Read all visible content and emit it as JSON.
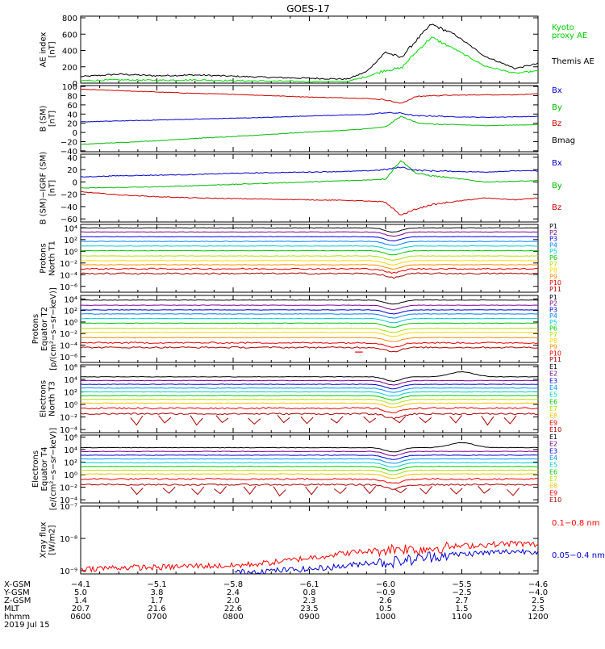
{
  "title": "GOES-17",
  "panels": [
    {
      "id": "ae",
      "ylabel": [
        "AE index",
        "[nT]"
      ],
      "ticks": [
        {
          "v": 800,
          "t": "800"
        },
        {
          "v": 600,
          "t": "600"
        },
        {
          "v": 400,
          "t": "400"
        },
        {
          "v": 200,
          "t": "200"
        },
        {
          "v": 0,
          "t": "0"
        }
      ],
      "ylim": [
        0,
        820
      ],
      "log": false,
      "legend": [
        {
          "text": "Kyoto",
          "color": "#00cc00"
        },
        {
          "text": "proxy AE",
          "color": "#00cc00"
        },
        {
          "text": "Themis AE",
          "color": "#000000"
        }
      ]
    },
    {
      "id": "bsm",
      "ylabel": [
        "B (SM)",
        "[nT]"
      ],
      "ticks": [
        {
          "v": 100,
          "t": "100"
        },
        {
          "v": 80,
          "t": "80"
        },
        {
          "v": 60,
          "t": "60"
        },
        {
          "v": 40,
          "t": "40"
        },
        {
          "v": 20,
          "t": "20"
        },
        {
          "v": 0,
          "t": "0"
        },
        {
          "v": -20,
          "t": "−20"
        },
        {
          "v": -40,
          "t": "−40"
        }
      ],
      "ylim": [
        -42,
        102
      ],
      "log": false,
      "legend": [
        {
          "text": "Bx",
          "color": "#0000cc"
        },
        {
          "text": "By",
          "color": "#00bb00"
        },
        {
          "text": "Bz",
          "color": "#cc0000"
        },
        {
          "text": "Bmag",
          "color": "#000000"
        }
      ]
    },
    {
      "id": "bigrf",
      "ylabel": [
        "B (SM)−IGRF (SM)",
        "[nT]"
      ],
      "ticks": [
        {
          "v": 40,
          "t": "40"
        },
        {
          "v": 20,
          "t": "20"
        },
        {
          "v": 0,
          "t": "0"
        },
        {
          "v": -20,
          "t": "−20"
        },
        {
          "v": -40,
          "t": "−40"
        },
        {
          "v": -60,
          "t": "−60"
        }
      ],
      "ylim": [
        -65,
        45
      ],
      "log": false,
      "legend": [
        {
          "text": "Bx",
          "color": "#0000cc"
        },
        {
          "text": "By",
          "color": "#00bb00"
        },
        {
          "text": "Bz",
          "color": "#cc0000"
        }
      ]
    },
    {
      "id": "pt1",
      "ylabel": [
        "Protons",
        "North T1"
      ],
      "ticks": [
        {
          "v": 4,
          "t": "10⁴"
        },
        {
          "v": 2,
          "t": "10²"
        },
        {
          "v": 0,
          "t": "10⁰"
        },
        {
          "v": -2,
          "t": "10⁻²"
        },
        {
          "v": -4,
          "t": "10⁻⁴"
        },
        {
          "v": -6,
          "t": "10⁻⁶"
        }
      ],
      "ylim": [
        -7,
        4.6
      ],
      "log": true,
      "legend": [
        {
          "text": "P1",
          "color": "#000000"
        },
        {
          "text": "P2",
          "color": "#7a0091"
        },
        {
          "text": "P3",
          "color": "#0000dd"
        },
        {
          "text": "P4",
          "color": "#0080ff"
        },
        {
          "text": "P5",
          "color": "#00cccc"
        },
        {
          "text": "P6",
          "color": "#00c800"
        },
        {
          "text": "P7",
          "color": "#b0e000"
        },
        {
          "text": "P8",
          "color": "#ffd700"
        },
        {
          "text": "P9",
          "color": "#ff8c00"
        },
        {
          "text": "P10",
          "color": "#ee0000"
        },
        {
          "text": "P11",
          "color": "#aa0000"
        }
      ]
    },
    {
      "id": "pt2",
      "ylabel": [
        "Protons",
        "Equator T2",
        "[p/(cm²−s−sr−keV)]"
      ],
      "ticks": [
        {
          "v": 4,
          "t": "10⁴"
        },
        {
          "v": 2,
          "t": "10²"
        },
        {
          "v": 0,
          "t": "10⁰"
        },
        {
          "v": -2,
          "t": "10⁻²"
        },
        {
          "v": -4,
          "t": "10⁻⁴"
        },
        {
          "v": -6,
          "t": "10⁻⁶"
        }
      ],
      "ylim": [
        -7,
        4.6
      ],
      "log": true,
      "legend": [
        {
          "text": "P1",
          "color": "#000000"
        },
        {
          "text": "P2",
          "color": "#7a0091"
        },
        {
          "text": "P3",
          "color": "#0000dd"
        },
        {
          "text": "P4",
          "color": "#0080ff"
        },
        {
          "text": "P5",
          "color": "#00cccc"
        },
        {
          "text": "P6",
          "color": "#00c800"
        },
        {
          "text": "P7",
          "color": "#b0e000"
        },
        {
          "text": "P8",
          "color": "#ffd700"
        },
        {
          "text": "P9",
          "color": "#ff8c00"
        },
        {
          "text": "P10",
          "color": "#ee0000"
        },
        {
          "text": "P11",
          "color": "#aa0000"
        }
      ]
    },
    {
      "id": "et3",
      "ylabel": [
        "Electrons",
        "North T3"
      ],
      "ticks": [
        {
          "v": 6,
          "t": "10⁶"
        },
        {
          "v": 4,
          "t": "10⁴"
        },
        {
          "v": 2,
          "t": "10²"
        },
        {
          "v": 0,
          "t": "10⁰"
        },
        {
          "v": -2,
          "t": "10⁻²"
        },
        {
          "v": -4,
          "t": "10⁻⁴"
        }
      ],
      "ylim": [
        -4.5,
        6.3
      ],
      "log": true,
      "legend": [
        {
          "text": "E1",
          "color": "#000000"
        },
        {
          "text": "E2",
          "color": "#7a0091"
        },
        {
          "text": "E3",
          "color": "#0000dd"
        },
        {
          "text": "E4",
          "color": "#0090ff"
        },
        {
          "text": "E5",
          "color": "#00cccc"
        },
        {
          "text": "E6",
          "color": "#00c800"
        },
        {
          "text": "E7",
          "color": "#b0e000"
        },
        {
          "text": "E8",
          "color": "#ffc000"
        },
        {
          "text": "E9",
          "color": "#ee0000"
        },
        {
          "text": "E10",
          "color": "#aa0000"
        }
      ]
    },
    {
      "id": "et4",
      "ylabel": [
        "Electrons",
        "Equator T4",
        "[e/(cm²−s−sr−keV)]"
      ],
      "ticks": [
        {
          "v": 6,
          "t": "10⁶"
        },
        {
          "v": 4,
          "t": "10⁴"
        },
        {
          "v": 2,
          "t": "10²"
        },
        {
          "v": 0,
          "t": "10⁰"
        },
        {
          "v": -2,
          "t": "10⁻²"
        },
        {
          "v": -4,
          "t": "10⁻⁴"
        }
      ],
      "ylim": [
        -4.5,
        6.3
      ],
      "log": true,
      "legend": [
        {
          "text": "E1",
          "color": "#000000"
        },
        {
          "text": "E2",
          "color": "#7a0091"
        },
        {
          "text": "E3",
          "color": "#0000dd"
        },
        {
          "text": "E4",
          "color": "#0090ff"
        },
        {
          "text": "E5",
          "color": "#00cccc"
        },
        {
          "text": "E6",
          "color": "#00c800"
        },
        {
          "text": "E7",
          "color": "#b0e000"
        },
        {
          "text": "E8",
          "color": "#ffc000"
        },
        {
          "text": "E9",
          "color": "#ee0000"
        },
        {
          "text": "E10",
          "color": "#aa0000"
        }
      ]
    },
    {
      "id": "xray",
      "ylabel": [
        "Xray flux",
        "[W/m2]"
      ],
      "ticks": [
        {
          "v": -7,
          "t": "10⁻⁷"
        },
        {
          "v": -8,
          "t": "10⁻⁸"
        },
        {
          "v": -9,
          "t": "10⁻⁹"
        }
      ],
      "ylim": [
        -9.1,
        -7
      ],
      "log": true,
      "legend": [
        {
          "text": "0.1−0.8 nm",
          "color": "#ff0000"
        },
        {
          "text": "0.05−0.4 nm",
          "color": "#0000cc"
        }
      ]
    }
  ],
  "xaxis": {
    "range": [
      6.0,
      12.0
    ],
    "major": [
      6.0,
      7.0,
      8.0,
      9.0,
      10.0,
      11.0,
      12.0
    ],
    "rows": [
      {
        "label": "X-GSM",
        "values": [
          "−4.1",
          "−5.1",
          "−5.8",
          "−6.1",
          "−6.0",
          "−5.5",
          "−4.6"
        ]
      },
      {
        "label": "Y-GSM",
        "values": [
          "5.0",
          "3.8",
          "2.4",
          "0.8",
          "−0.9",
          "−2.5",
          "−4.0"
        ]
      },
      {
        "label": "Z-GSM",
        "values": [
          "1.4",
          "1.7",
          "2.0",
          "2.3",
          "2.6",
          "2.7",
          "2.5"
        ]
      },
      {
        "label": "MLT",
        "values": [
          "20.7",
          "21.6",
          "22.6",
          "23.5",
          "0.5",
          "1.5",
          "2.5"
        ]
      },
      {
        "label": "hhmm",
        "values": [
          "0600",
          "0700",
          "0800",
          "0900",
          "1000",
          "1100",
          "1200"
        ]
      }
    ],
    "date": "2019 Jul 15"
  },
  "chart_data": {
    "type": "line",
    "title": "GOES-17",
    "time_hours": [
      6,
      6.5,
      7,
      7.5,
      8,
      8.5,
      9,
      9.5,
      9.75,
      10.0,
      10.2,
      10.4,
      10.6,
      10.9,
      11.3,
      11.7,
      12.0
    ],
    "series": [
      {
        "panel": "ae",
        "name": "Themis AE",
        "values": [
          80,
          110,
          90,
          100,
          85,
          70,
          60,
          50,
          140,
          380,
          310,
          520,
          720,
          600,
          330,
          180,
          240
        ]
      },
      {
        "panel": "ae",
        "name": "Kyoto proxy AE",
        "values": [
          30,
          40,
          35,
          40,
          30,
          25,
          20,
          20,
          80,
          160,
          180,
          380,
          560,
          420,
          210,
          120,
          150
        ]
      },
      {
        "panel": "bsm",
        "name": "Bz",
        "values": [
          94,
          91,
          88,
          85,
          83,
          80,
          77,
          75,
          74,
          71,
          63,
          78,
          80,
          81,
          82,
          82,
          84
        ]
      },
      {
        "panel": "bsm",
        "name": "Bx",
        "values": [
          23,
          25,
          27,
          29,
          31,
          33,
          36,
          38,
          39,
          43,
          42,
          36,
          36,
          34,
          33,
          34,
          35
        ]
      },
      {
        "panel": "bsm",
        "name": "By",
        "values": [
          -26,
          -22,
          -18,
          -13,
          -9,
          -4,
          1,
          5,
          8,
          12,
          35,
          22,
          18,
          17,
          15,
          16,
          17
        ]
      },
      {
        "panel": "bigrf",
        "name": "Bx",
        "values": [
          8,
          10,
          11,
          12,
          14,
          15,
          16,
          17,
          18,
          20,
          24,
          19,
          18,
          17,
          16,
          18,
          18
        ]
      },
      {
        "panel": "bigrf",
        "name": "By",
        "values": [
          -10,
          -9,
          -8,
          -6,
          -4,
          -2,
          0,
          2,
          3,
          5,
          35,
          14,
          10,
          6,
          0,
          1,
          2
        ]
      },
      {
        "panel": "bigrf",
        "name": "Bz",
        "values": [
          -16,
          -21,
          -24,
          -26,
          -27,
          -28,
          -29,
          -30,
          -31,
          -33,
          -54,
          -44,
          -37,
          -32,
          -26,
          -29,
          -26
        ]
      },
      {
        "panel": "xray",
        "name": "0.1-0.8 nm (log10 W/m2)",
        "values": [
          -8.95,
          -8.9,
          -8.9,
          -8.85,
          -8.85,
          -8.75,
          -8.6,
          -8.45,
          -8.4,
          -8.35,
          -8.3,
          -8.35,
          -8.3,
          -8.25,
          -8.2,
          -8.15,
          -8.2
        ]
      },
      {
        "panel": "xray",
        "name": "0.05-0.4 nm (log10 W/m2)",
        "values": [
          null,
          null,
          null,
          null,
          -9.05,
          -9.0,
          -8.95,
          -8.85,
          -8.75,
          -8.75,
          -8.7,
          -8.65,
          -8.55,
          -8.5,
          -8.45,
          -8.4,
          -8.4
        ]
      }
    ],
    "flux_levels_log10": {
      "pt1": [
        4.0,
        3.3,
        2.5,
        1.7,
        0.9,
        0.1,
        -0.8,
        -1.6,
        -2.3,
        -3.0,
        -3.8
      ],
      "pt2": [
        3.8,
        2.9,
        2.1,
        1.4,
        0.6,
        -0.2,
        -1.1,
        -1.8,
        -2.7,
        -3.6,
        -4.4
      ],
      "et3": [
        4.4,
        3.8,
        3.2,
        2.6,
        2.0,
        1.4,
        0.8,
        0.2,
        -0.6,
        -1.5
      ],
      "et4": [
        4.3,
        3.7,
        3.1,
        2.5,
        1.9,
        1.3,
        0.7,
        0.1,
        -0.7,
        -1.6
      ]
    }
  }
}
